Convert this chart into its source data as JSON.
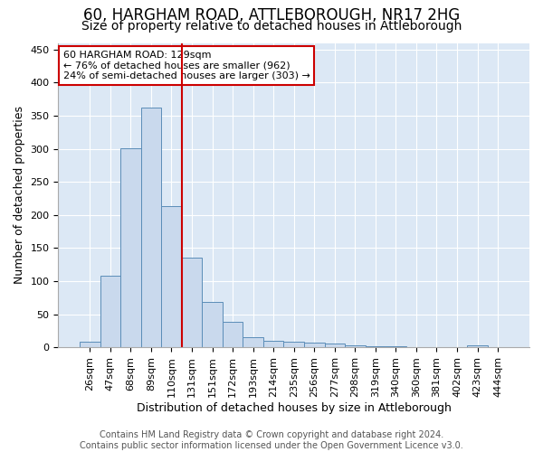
{
  "title": "60, HARGHAM ROAD, ATTLEBOROUGH, NR17 2HG",
  "subtitle": "Size of property relative to detached houses in Attleborough",
  "xlabel": "Distribution of detached houses by size in Attleborough",
  "ylabel": "Number of detached properties",
  "categories": [
    "26sqm",
    "47sqm",
    "68sqm",
    "89sqm",
    "110sqm",
    "131sqm",
    "151sqm",
    "172sqm",
    "193sqm",
    "214sqm",
    "235sqm",
    "256sqm",
    "277sqm",
    "298sqm",
    "319sqm",
    "340sqm",
    "360sqm",
    "381sqm",
    "402sqm",
    "423sqm",
    "444sqm"
  ],
  "values": [
    8,
    108,
    301,
    362,
    213,
    136,
    68,
    38,
    15,
    10,
    8,
    7,
    5,
    3,
    2,
    1,
    0,
    0,
    0,
    3,
    0
  ],
  "bar_color": "#c9d9ed",
  "bar_edge_color": "#5b8db8",
  "red_line_index": 5,
  "ylim": [
    0,
    460
  ],
  "yticks": [
    0,
    50,
    100,
    150,
    200,
    250,
    300,
    350,
    400,
    450
  ],
  "annotation_title": "60 HARGHAM ROAD: 129sqm",
  "annotation_line1": "← 76% of detached houses are smaller (962)",
  "annotation_line2": "24% of semi-detached houses are larger (303) →",
  "annotation_box_color": "#ffffff",
  "annotation_box_edge": "#cc0000",
  "red_line_color": "#cc0000",
  "footer_line1": "Contains HM Land Registry data © Crown copyright and database right 2024.",
  "footer_line2": "Contains public sector information licensed under the Open Government Licence v3.0.",
  "background_color": "#ffffff",
  "plot_bg_color": "#dce8f5",
  "title_fontsize": 12,
  "subtitle_fontsize": 10,
  "tick_fontsize": 8,
  "ylabel_fontsize": 9,
  "xlabel_fontsize": 9,
  "footer_fontsize": 7
}
